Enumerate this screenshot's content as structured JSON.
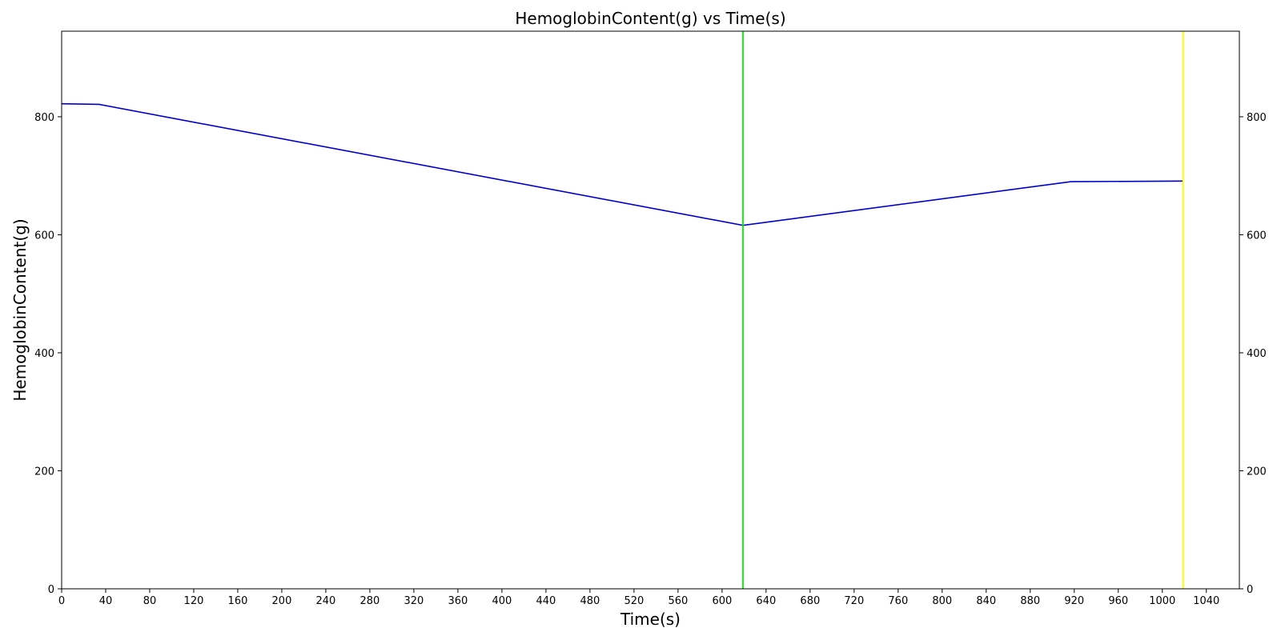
{
  "chart_data": {
    "type": "line",
    "title": "HemoglobinContent(g) vs Time(s)",
    "xlabel": "Time(s)",
    "ylabel": "HemoglobinContent(g)",
    "xlim": [
      0,
      1070
    ],
    "ylim": [
      0,
      945
    ],
    "x_ticks": [
      0,
      40,
      80,
      120,
      160,
      200,
      240,
      280,
      320,
      360,
      400,
      440,
      480,
      520,
      560,
      600,
      640,
      680,
      720,
      760,
      800,
      840,
      880,
      920,
      960,
      1000,
      1040
    ],
    "y_ticks": [
      0,
      200,
      400,
      600,
      800
    ],
    "right_y_axis_mirrored": true,
    "grid": false,
    "series": [
      {
        "color": "#0000cd",
        "x": [
          0,
          34,
          619,
          917,
          1019
        ],
        "y": [
          822,
          821,
          616,
          690,
          691
        ]
      }
    ],
    "vertical_lines": [
      {
        "x": 619,
        "color": "#00ee00"
      },
      {
        "x": 1019,
        "color": "#ffff00"
      }
    ]
  }
}
